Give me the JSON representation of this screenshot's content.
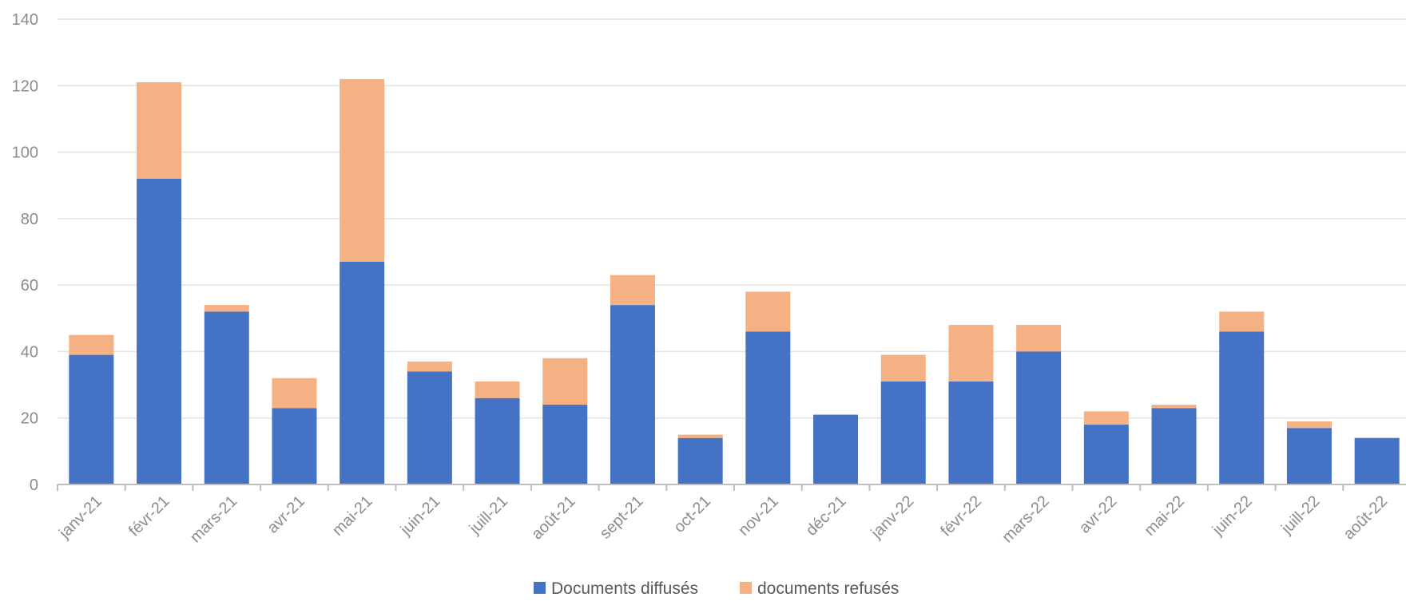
{
  "chart_data": {
    "type": "bar",
    "stacked": true,
    "categories": [
      "janv-21",
      "févr-21",
      "mars-21",
      "avr-21",
      "mai-21",
      "juin-21",
      "juill-21",
      "août-21",
      "sept-21",
      "oct-21",
      "nov-21",
      "déc-21",
      "janv-22",
      "févr-22",
      "mars-22",
      "avr-22",
      "mai-22",
      "juin-22",
      "juill-22",
      "août-22"
    ],
    "series": [
      {
        "name": "Documents diffusés",
        "color": "#4472c4",
        "values": [
          39,
          92,
          52,
          23,
          67,
          34,
          26,
          24,
          54,
          14,
          46,
          21,
          31,
          31,
          40,
          18,
          23,
          46,
          17,
          14
        ]
      },
      {
        "name": "documents refusés",
        "color": "#f4b183",
        "values": [
          6,
          29,
          2,
          9,
          55,
          3,
          5,
          14,
          9,
          1,
          12,
          0,
          8,
          17,
          8,
          4,
          1,
          6,
          2,
          0
        ]
      }
    ],
    "y_ticks": [
      "0",
      "20",
      "40",
      "60",
      "80",
      "100",
      "120",
      "140"
    ],
    "ylim": [
      0,
      140
    ],
    "grid": true,
    "legend_position": "bottom",
    "title": "",
    "xlabel": "",
    "ylabel": ""
  }
}
